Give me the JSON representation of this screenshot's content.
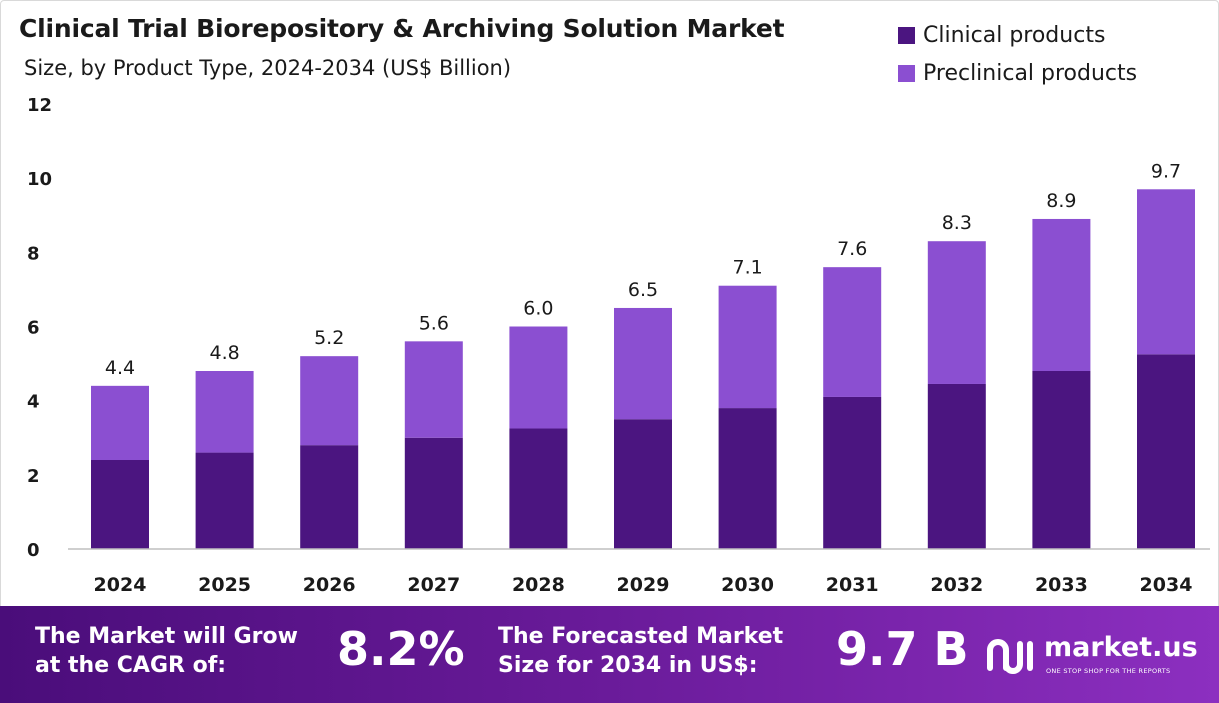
{
  "header": {
    "title": "Clinical Trial Biorepository & Archiving Solution Market",
    "subtitle": "Size, by Product Type, 2024-2034 (US$ Billion)"
  },
  "legend": [
    {
      "label": "Clinical products",
      "color": "#4b1580"
    },
    {
      "label": "Preclinical products",
      "color": "#8b4fd1"
    }
  ],
  "chart_data": {
    "type": "bar",
    "stacked": true,
    "title": "Clinical Trial Biorepository & Archiving Solution Market",
    "subtitle": "Size, by Product Type, 2024-2034 (US$ Billion)",
    "categories": [
      "2024",
      "2025",
      "2026",
      "2027",
      "2028",
      "2029",
      "2030",
      "2031",
      "2032",
      "2033",
      "2034"
    ],
    "series": [
      {
        "name": "Clinical products",
        "color": "#4b1580",
        "values": [
          2.4,
          2.6,
          2.8,
          3.0,
          3.25,
          3.5,
          3.8,
          4.1,
          4.45,
          4.8,
          5.25
        ]
      },
      {
        "name": "Preclinical products",
        "color": "#8b4fd1",
        "values": [
          2.0,
          2.2,
          2.4,
          2.6,
          2.75,
          3.0,
          3.3,
          3.5,
          3.85,
          4.1,
          4.45
        ]
      }
    ],
    "totals": [
      "4.4",
      "4.8",
      "5.2",
      "5.6",
      "6.0",
      "6.5",
      "7.1",
      "7.6",
      "8.3",
      "8.9",
      "9.7"
    ],
    "yticks": [
      0,
      2,
      4,
      6,
      8,
      10,
      12
    ],
    "ylim": [
      0,
      12
    ],
    "xlabel": "",
    "ylabel": "",
    "legend_position": "top-right",
    "grid": false
  },
  "footer": {
    "cagr_label_line1": "The Market will Grow",
    "cagr_label_line2": "at the CAGR of:",
    "cagr_value": "8.2%",
    "forecast_label_line1": "The Forecasted Market",
    "forecast_label_line2": "Size for 2034 in US$:",
    "forecast_value": "9.7 B",
    "brand_name": "market.us",
    "brand_tagline": "ONE STOP SHOP FOR THE REPORTS"
  },
  "colors": {
    "footer_start": "#4a0d7a",
    "footer_end": "#8c2fc0"
  }
}
